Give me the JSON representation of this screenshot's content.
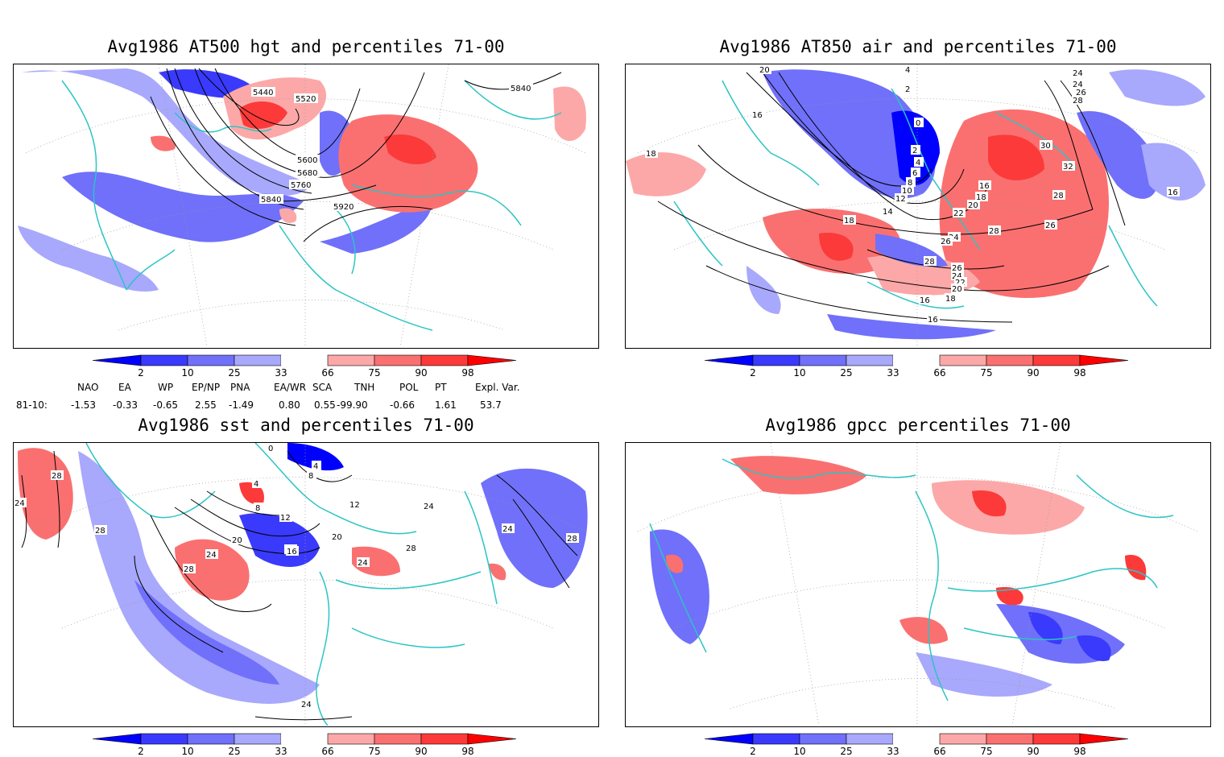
{
  "colorbar": {
    "ticks": [
      "2",
      "10",
      "25",
      "33",
      "66",
      "75",
      "90",
      "98"
    ],
    "colors": [
      "#0000ff",
      "#3a3afc",
      "#7070fa",
      "#a8a8fc",
      "#ffffff",
      "#fca8a8",
      "#fa7070",
      "#fc3a3a",
      "#ff0000"
    ]
  },
  "colors": {
    "coast": "#2cc4c4",
    "blue_light": "#a8a8fc",
    "blue_mid": "#7070fa",
    "blue_dark": "#3a3afc",
    "red_light": "#fca8a8",
    "red_mid": "#fa7070",
    "red_dark": "#fc3a3a"
  },
  "panels": [
    {
      "id": "hgt500",
      "title": "Avg1986 AT500 hgt and percentiles 71-00",
      "contour_labels": [
        "5440",
        "5520",
        "5600",
        "5680",
        "5760",
        "5840",
        "5920",
        "5840"
      ]
    },
    {
      "id": "air850",
      "title": "Avg1986 AT850 air and percentiles 71-00",
      "contour_labels": [
        "20",
        "4",
        "2",
        "0",
        "2",
        "4",
        "6",
        "8",
        "10",
        "12",
        "14",
        "16",
        "18",
        "20",
        "22",
        "24",
        "26",
        "28",
        "28",
        "26",
        "26",
        "24",
        "22",
        "20",
        "18",
        "16",
        "16",
        "18",
        "16",
        "18",
        "24",
        "24",
        "26",
        "28",
        "30",
        "32",
        "28",
        "16"
      ]
    },
    {
      "id": "sst",
      "title": "Avg1986 sst and percentiles 71-00",
      "contour_labels": [
        "28",
        "24",
        "28",
        "28",
        "24",
        "20",
        "16",
        "12",
        "8",
        "4",
        "0",
        "4",
        "8",
        "12",
        "16",
        "20",
        "24",
        "28",
        "24",
        "24",
        "28",
        "24"
      ]
    },
    {
      "id": "gpcc",
      "title": "Avg1986 gpcc percentiles 71-00",
      "contour_labels": []
    }
  ],
  "indices": {
    "headers": [
      "NAO",
      "EA",
      "WP",
      "EP/NP",
      "PNA",
      "EA/WR",
      "SCA",
      "TNH",
      "POL",
      "PT",
      "Expl. Var."
    ],
    "row_label": "81-10:",
    "values": [
      "-1.53",
      "-0.33",
      "-0.65",
      "2.55",
      "-1.49",
      "0.80",
      "0.55",
      "-99.90",
      "-0.66",
      "1.61",
      "53.7"
    ]
  }
}
